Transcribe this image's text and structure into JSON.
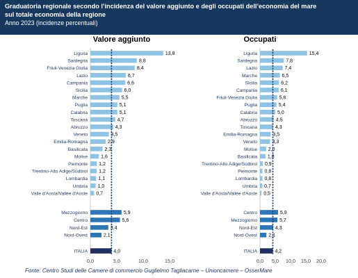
{
  "header": {
    "title_line1": "Graduatoria regionale secondo l’incidenza del valore aggiunto e degli occupati dell’economia del mare",
    "title_line2": "sul totale economia della regione",
    "subtitle": "Anno 2023 (incidenze percentuali)"
  },
  "source": "Fonte: Centro Studi delle Camere di commercio Guglielmo Tagliacarne – Unioncamere – OsserMare",
  "colors": {
    "header_bg": "#17375e",
    "region_bar": "#8fc3e3",
    "macro_bar": "#2e75b6",
    "italy_bar": "#1f2f5e",
    "reference_line": "#1f3864",
    "label_text": "#1f3864"
  },
  "chart_data": [
    {
      "type": "bar",
      "orientation": "horizontal",
      "title": "Valore aggiunto",
      "xlim": [
        0,
        15
      ],
      "xticks": [
        "0,0",
        "5,0",
        "10,0",
        "15,0"
      ],
      "reference_line": 4.0,
      "regions": [
        {
          "label": "Liguria",
          "value": 13.8,
          "display": "13,8"
        },
        {
          "label": "Sardegna",
          "value": 8.8,
          "display": "8,8"
        },
        {
          "label": "Friuli-Venezia Giulia",
          "value": 8.4,
          "display": "8,4"
        },
        {
          "label": "Lazio",
          "value": 6.7,
          "display": "6,7"
        },
        {
          "label": "Campania",
          "value": 6.6,
          "display": "6,6"
        },
        {
          "label": "Sicilia",
          "value": 6.0,
          "display": "6,0"
        },
        {
          "label": "Marche",
          "value": 5.5,
          "display": "5,5"
        },
        {
          "label": "Puglia",
          "value": 5.1,
          "display": "5,1"
        },
        {
          "label": "Calabria",
          "value": 5.1,
          "display": "5,1"
        },
        {
          "label": "Toscana",
          "value": 4.7,
          "display": "4,7"
        },
        {
          "label": "Abruzzo",
          "value": 4.3,
          "display": "4,3"
        },
        {
          "label": "Veneto",
          "value": 3.5,
          "display": "3,5"
        },
        {
          "label": "Emilia-Romagna",
          "value": 2.9,
          "display": "2,9"
        },
        {
          "label": "Basilicata",
          "value": 2.3,
          "display": "2,3"
        },
        {
          "label": "Molise",
          "value": 1.6,
          "display": "1,6"
        },
        {
          "label": "Piemonte",
          "value": 1.2,
          "display": "1,2"
        },
        {
          "label": "Trentino-Alto Adige/Südtirol",
          "value": 1.2,
          "display": "1,2"
        },
        {
          "label": "Lombardia",
          "value": 1.1,
          "display": "1,1"
        },
        {
          "label": "Umbria",
          "value": 1.0,
          "display": "1,0"
        },
        {
          "label": "Valle d'Aosta/Vallée d'Aoste",
          "value": 0.7,
          "display": "0,7"
        }
      ],
      "macro": [
        {
          "label": "Mezzogiorno",
          "value": 5.9,
          "display": "5,9"
        },
        {
          "label": "Centro",
          "value": 5.6,
          "display": "5,6"
        },
        {
          "label": "Nord-Est",
          "value": 3.4,
          "display": "3,4"
        },
        {
          "label": "Nord-Ovest",
          "value": 2.1,
          "display": "2,1"
        }
      ],
      "italy": {
        "label": "ITALIA",
        "value": 4.0,
        "display": "4,0"
      }
    },
    {
      "type": "bar",
      "orientation": "horizontal",
      "title": "Occupati",
      "xlim": [
        0,
        20
      ],
      "xticks": [
        "0,0",
        "5,0",
        "10,0",
        "15,0",
        "20,0"
      ],
      "reference_line": 4.2,
      "regions": [
        {
          "label": "Liguria",
          "value": 15.4,
          "display": "15,4"
        },
        {
          "label": "Sardegna",
          "value": 7.8,
          "display": "7,8"
        },
        {
          "label": "Lazio",
          "value": 7.4,
          "display": "7,4"
        },
        {
          "label": "Marche",
          "value": 6.5,
          "display": "6,5"
        },
        {
          "label": "Sicilia",
          "value": 6.2,
          "display": "6,2"
        },
        {
          "label": "Campania",
          "value": 6.1,
          "display": "6,1"
        },
        {
          "label": "Friuli-Venezia Giulia",
          "value": 5.6,
          "display": "5,6"
        },
        {
          "label": "Puglia",
          "value": 5.4,
          "display": "5,4"
        },
        {
          "label": "Calabria",
          "value": 5.0,
          "display": "5,0"
        },
        {
          "label": "Abruzzo",
          "value": 4.5,
          "display": "4,5"
        },
        {
          "label": "Toscana",
          "value": 4.3,
          "display": "4,3"
        },
        {
          "label": "Emilia-Romagna",
          "value": 3.5,
          "display": "3,5"
        },
        {
          "label": "Veneto",
          "value": 3.3,
          "display": "3,3"
        },
        {
          "label": "Molise",
          "value": 2.0,
          "display": "2,0"
        },
        {
          "label": "Basilicata",
          "value": 1.8,
          "display": "1,8"
        },
        {
          "label": "Trentino-Alto Adige/Südtirol",
          "value": 0.9,
          "display": "0,9"
        },
        {
          "label": "Piemonte",
          "value": 0.8,
          "display": "0,8"
        },
        {
          "label": "Lombardia",
          "value": 0.8,
          "display": "0,8"
        },
        {
          "label": "Umbria",
          "value": 0.7,
          "display": "0,7"
        },
        {
          "label": "Valle d'Aosta/Vallée d'Aoste",
          "value": 0.5,
          "display": "0,5"
        }
      ],
      "macro": [
        {
          "label": "Centro",
          "value": 5.9,
          "display": "5,9"
        },
        {
          "label": "Mezzogiorno",
          "value": 5.7,
          "display": "5,7"
        },
        {
          "label": "Nord-Est",
          "value": 4.3,
          "display": "4,3"
        },
        {
          "label": "Nord-Ovest",
          "value": 2.1,
          "display": "2,1"
        }
      ],
      "italy": {
        "label": "ITALIA",
        "value": 4.2,
        "display": "4,2"
      }
    }
  ]
}
